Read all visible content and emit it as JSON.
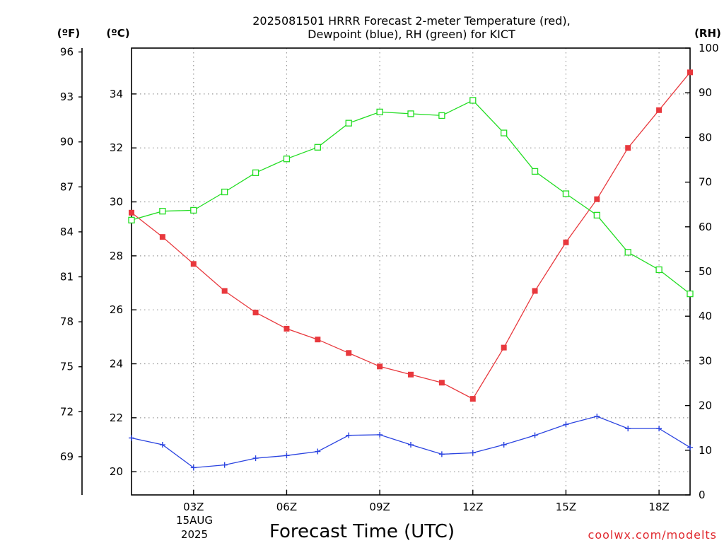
{
  "chart_data": {
    "type": "line",
    "title_line1": "2025081501 HRRR Forecast 2-meter Temperature (red),",
    "title_line2": "Dewpoint (blue), RH (green) for KICT",
    "xlabel": "Forecast Time (UTC)",
    "left_unit_f": "(ºF)",
    "left_unit_c": "(ºC)",
    "right_unit": "(RH)",
    "credit": "coolwx.com/modelts",
    "x_hours": [
      1,
      19
    ],
    "x_ticks": [
      {
        "hour": 3,
        "label": "03Z"
      },
      {
        "hour": 6,
        "label": "06Z"
      },
      {
        "hour": 9,
        "label": "09Z"
      },
      {
        "hour": 12,
        "label": "12Z"
      },
      {
        "hour": 15,
        "label": "15Z"
      },
      {
        "hour": 18,
        "label": "18Z"
      }
    ],
    "date_label": "15AUG",
    "year_label": "2025",
    "ylim_c": [
      19.14,
      35.7
    ],
    "yticks_c": [
      20,
      22,
      24,
      26,
      28,
      30,
      32,
      34
    ],
    "ylim_f": [
      66.45,
      96.26
    ],
    "yticks_f": [
      69,
      72,
      75,
      78,
      81,
      84,
      87,
      90,
      93,
      96
    ],
    "ylim_rh": [
      0,
      100
    ],
    "yticks_rh": [
      0,
      10,
      20,
      30,
      40,
      50,
      60,
      70,
      80,
      90,
      100
    ],
    "series": [
      {
        "key": "temperature",
        "color": "#e8383d",
        "axis": "c",
        "marker": "filled-square",
        "x": [
          1,
          2,
          3,
          4,
          5,
          6,
          7,
          8,
          9,
          10,
          11,
          12,
          13,
          14,
          15,
          16,
          17,
          18,
          19
        ],
        "values": [
          29.6,
          28.7,
          27.7,
          26.7,
          25.9,
          25.3,
          24.9,
          24.4,
          23.9,
          23.6,
          23.3,
          22.7,
          24.6,
          26.7,
          28.5,
          30.1,
          32.0,
          33.4,
          34.8
        ]
      },
      {
        "key": "dewpoint",
        "color": "#2a43e0",
        "axis": "c",
        "marker": "plus",
        "x": [
          1,
          2,
          3,
          4,
          5,
          6,
          7,
          8,
          9,
          10,
          11,
          12,
          13,
          14,
          15,
          16,
          17,
          18,
          19
        ],
        "values": [
          21.25,
          21.0,
          20.15,
          20.25,
          20.5,
          20.6,
          20.75,
          21.35,
          21.37,
          21.0,
          20.65,
          20.7,
          21.0,
          21.35,
          21.75,
          22.05,
          21.6,
          21.6,
          20.9
        ]
      },
      {
        "key": "rh",
        "color": "#22dd22",
        "axis": "rh",
        "marker": "open-square",
        "x": [
          1,
          2,
          3,
          4,
          5,
          6,
          7,
          8,
          9,
          10,
          11,
          12,
          13,
          14,
          15,
          16,
          17,
          18,
          19
        ],
        "values": [
          61.5,
          63.5,
          63.7,
          67.8,
          72.1,
          75.2,
          77.8,
          83.2,
          85.7,
          85.3,
          84.9,
          88.3,
          81.0,
          72.4,
          67.4,
          62.6,
          54.3,
          50.4,
          45.0
        ]
      }
    ]
  }
}
